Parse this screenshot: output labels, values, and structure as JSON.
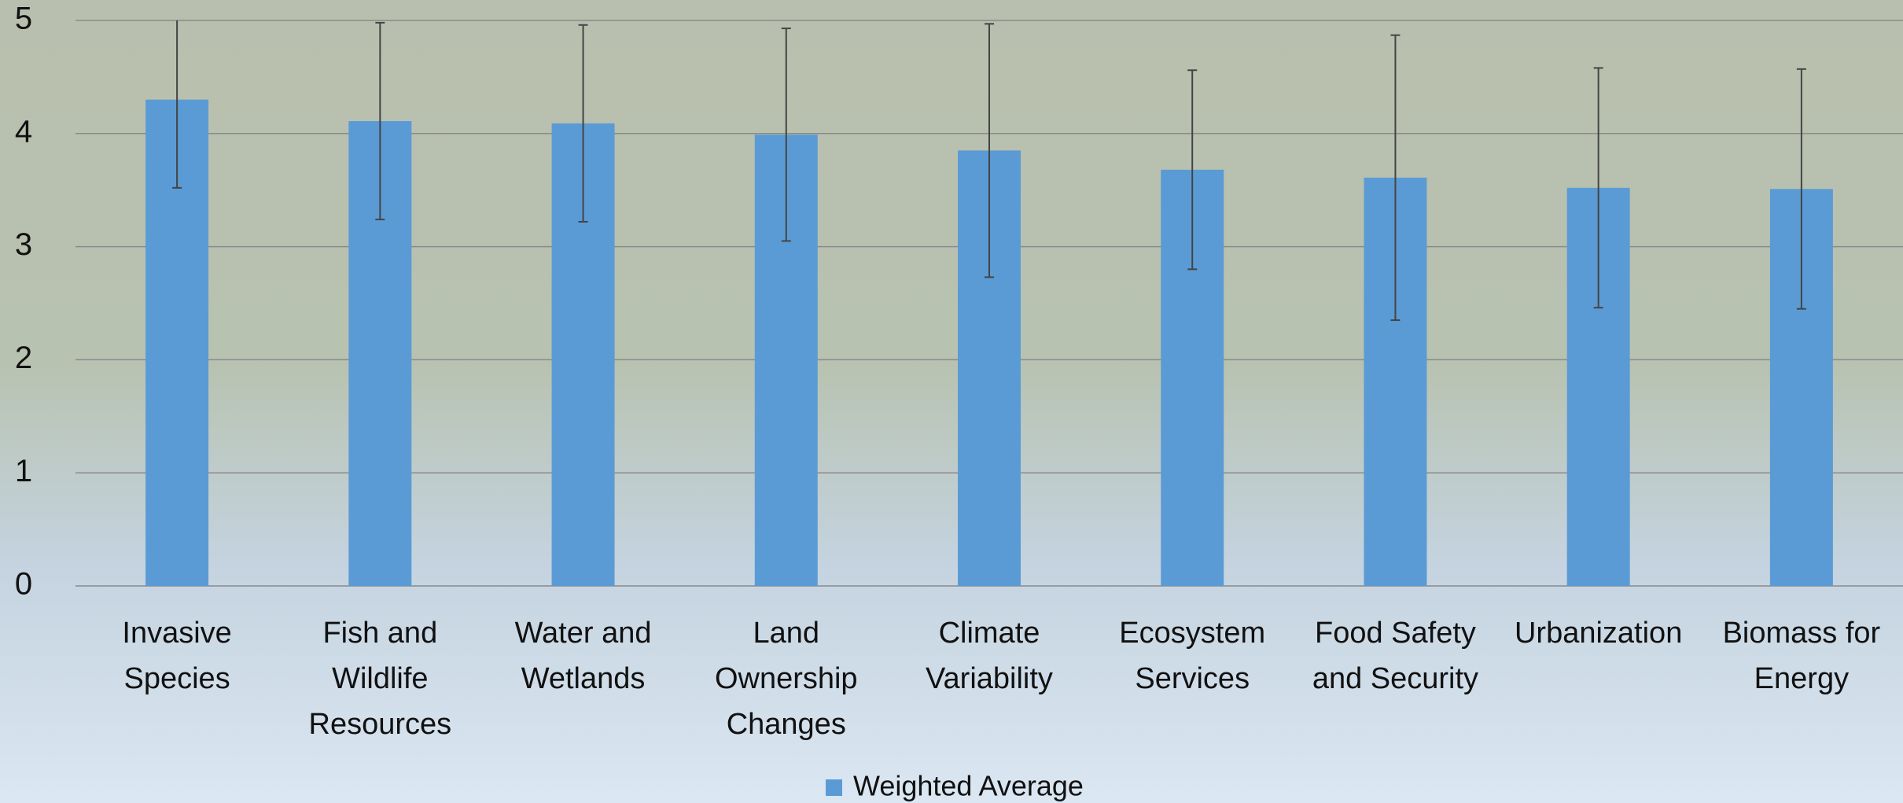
{
  "chart_data": {
    "type": "bar",
    "categories": [
      "Invasive Species",
      "Fish and Wildlife Resources",
      "Water and Wetlands",
      "Land Ownership Changes",
      "Climate Variability",
      "Ecosystem Services",
      "Food Safety and Security",
      "Urbanization",
      "Biomass for Energy"
    ],
    "series": [
      {
        "name": "Weighted Average",
        "color": "#5b9bd5",
        "values": [
          4.3,
          4.11,
          4.09,
          3.99,
          3.85,
          3.68,
          3.61,
          3.52,
          3.51
        ],
        "errors": [
          0.78,
          0.87,
          0.87,
          0.94,
          1.12,
          0.88,
          1.26,
          1.06,
          1.06
        ]
      }
    ],
    "ylim": [
      0,
      5
    ],
    "yticks": [
      0,
      1,
      2,
      3,
      4,
      5
    ],
    "grid": true,
    "legend": "bottom"
  }
}
